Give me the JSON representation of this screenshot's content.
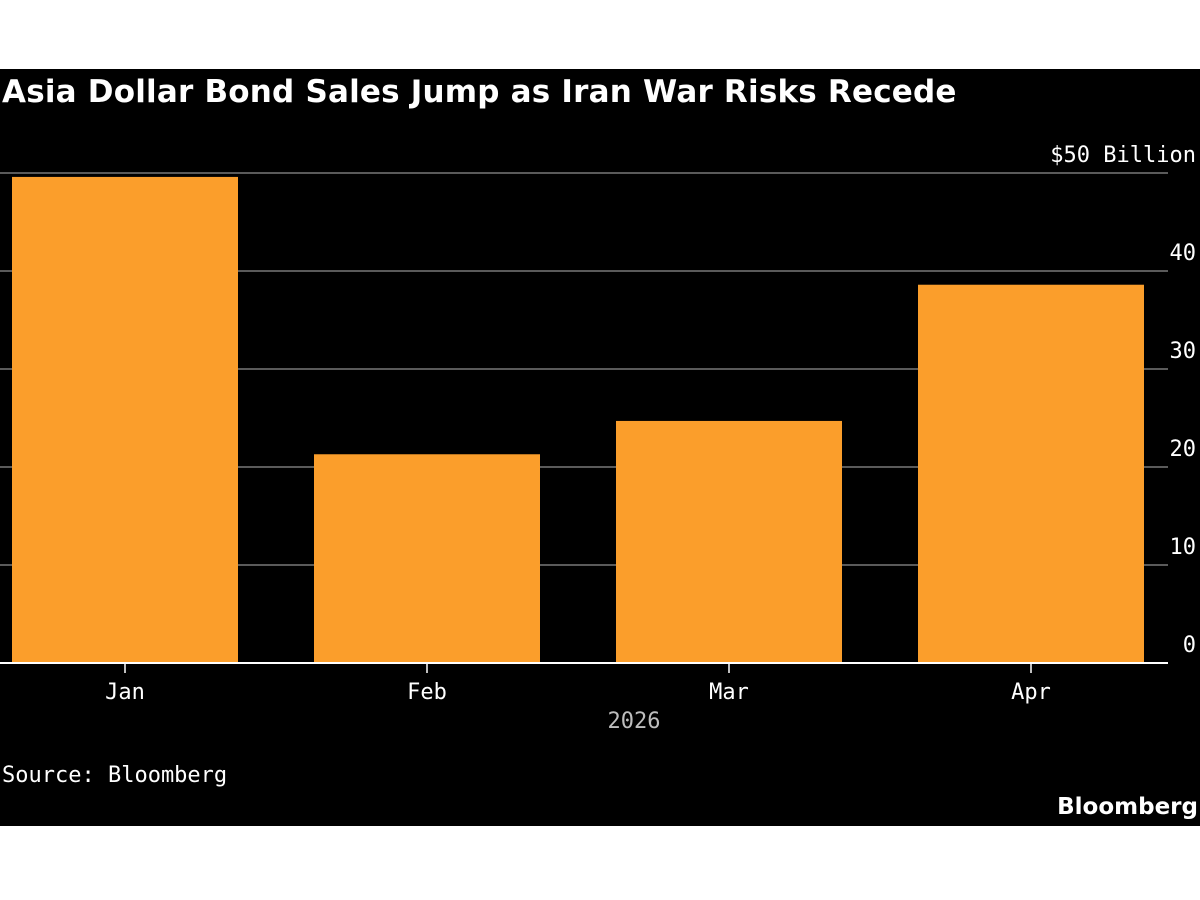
{
  "title": "Asia Dollar Bond Sales Jump as Iran War Risks Recede",
  "source": "Source: Bloomberg",
  "brand": "Bloomberg",
  "colors": {
    "background": "#000000",
    "bar": "#fb9e2b",
    "grid": "#5a5a5a",
    "axis": "#ffffff",
    "text": "#ffffff",
    "xgroup_text": "#bdbdbd"
  },
  "chart_data": {
    "type": "bar",
    "title": "Asia Dollar Bond Sales Jump as Iran War Risks Recede",
    "categories": [
      "Jan",
      "Feb",
      "Mar",
      "Apr"
    ],
    "values": [
      49.6,
      21.3,
      24.7,
      38.6
    ],
    "x_group_label": "2026",
    "ylabel": "",
    "xlabel": "",
    "ylim": [
      0,
      50
    ],
    "y_ticks": [
      0,
      10,
      20,
      30,
      40,
      50
    ],
    "y_tick_labels": [
      "0",
      "10",
      "20",
      "30",
      "40",
      "$50 Billion"
    ],
    "y_axis_side": "right",
    "grid": true,
    "legend": "none"
  }
}
